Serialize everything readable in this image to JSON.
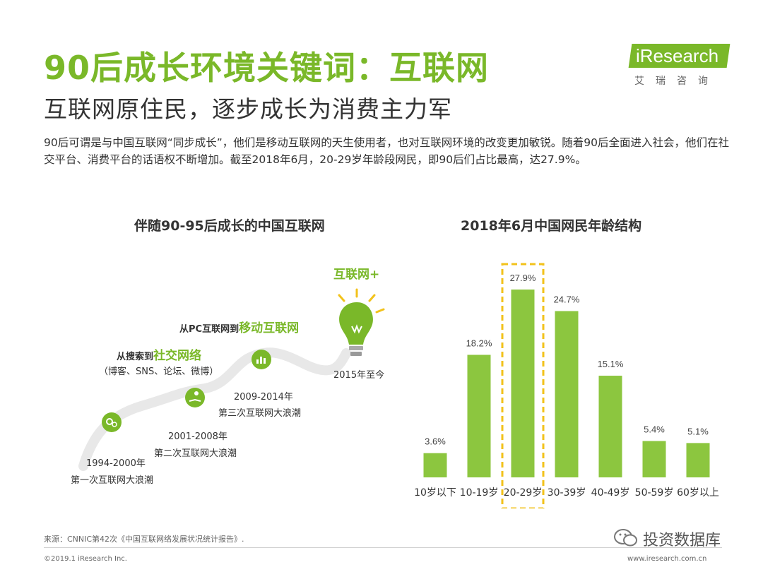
{
  "header": {
    "title": "90后成长环境关键词：互联网",
    "subtitle": "互联网原住民，逐步成长为消费主力军",
    "intro": "90后可谓是与中国互联网“同步成长”，他们是移动互联网的天生使用者，也对互联网环境的改变更加敏锐。随着90后全面进入社会，他们在社交平台、消费平台的话语权不断增加。截至2018年6月，20-29岁年龄段网民，即90后们占比最高，达27.9%。"
  },
  "logo": {
    "brand": "iResearch",
    "cn": "艾瑞咨询"
  },
  "left_panel": {
    "title": "伴随90-95后成长的中国互联网",
    "milestones": [
      {
        "period": "1994-2000年",
        "desc": "第一次互联网大浪潮"
      },
      {
        "period": "2001-2008年",
        "desc": "第二次互联网大浪潮"
      },
      {
        "period": "2009-2014年",
        "desc": "第三次互联网大浪潮"
      },
      {
        "period": "2015年至今",
        "desc": ""
      }
    ],
    "callouts": {
      "search_prefix": "从搜索到",
      "search_highlight": "社交网络",
      "search_detail": "（博客、SNS、论坛、微博）",
      "mobile_prefix": "从PC互联网到",
      "mobile_highlight": "移动互联网",
      "plus": "互联网+"
    },
    "colors": {
      "accent": "#7ab829",
      "curve": "#e6e6e6"
    }
  },
  "chart_data": {
    "type": "bar",
    "title": "2018年6月中国网民年龄结构",
    "categories": [
      "10岁以下",
      "10-19岁",
      "20-29岁",
      "30-39岁",
      "40-49岁",
      "50-59岁",
      "60岁以上"
    ],
    "values": [
      3.6,
      18.2,
      27.9,
      24.7,
      15.1,
      5.4,
      5.1
    ],
    "value_labels": [
      "3.6%",
      "18.2%",
      "27.9%",
      "24.7%",
      "15.1%",
      "5.4%",
      "5.1%"
    ],
    "highlight_index": 2,
    "ylim": [
      0,
      30
    ],
    "grid": false,
    "bar_color": "#8cc63f",
    "highlight_color": "#f2c21b"
  },
  "footer": {
    "source": "来源：CNNIC第42次《中国互联网络发展状况统计报告》.",
    "copyright": "©2019.1 iResearch Inc.",
    "url": "www.iresearch.com.cn",
    "watermark": "投资数据库"
  }
}
